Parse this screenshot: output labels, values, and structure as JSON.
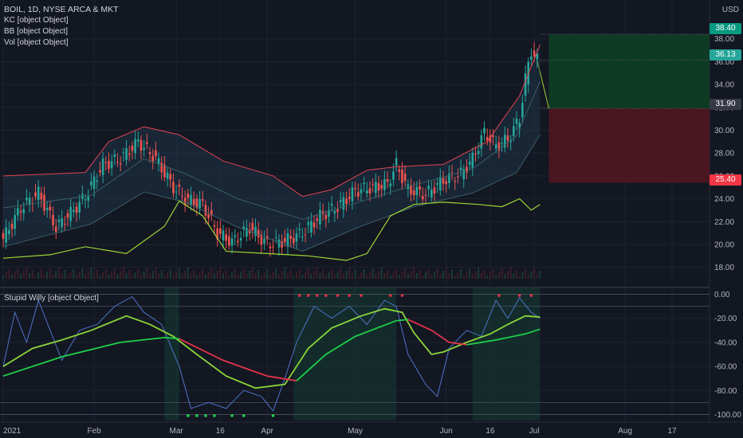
{
  "header": {
    "symbol_line": "BOIL, 1D, NYSE ARCA & MKT",
    "currency": "USD",
    "indicators": [
      "KC [object Object]",
      "BB [object Object]",
      "Vol [object Object]"
    ],
    "oscillator_label": "Stupid Willy [object Object]"
  },
  "price_tags": [
    {
      "value": "38.40",
      "color": "#089981"
    },
    {
      "value": "36.13",
      "color": "#26a69a"
    },
    {
      "value": "31.90",
      "color": "#363a45"
    },
    {
      "value": "25.40",
      "color": "#f23645"
    }
  ],
  "colors": {
    "up": "#26a69a",
    "down": "#ef5350",
    "kc": "#e04452",
    "bb": "#9cd535",
    "osc_blue": "#4f73c9",
    "osc_green": "#8bd53a",
    "osc_red": "#e0334a",
    "signal": "#1fd14a",
    "profit_zone": "#0e3b23",
    "loss_zone": "#4a1620"
  },
  "chart_data": [
    {
      "type": "candlestick",
      "title": "BOIL, 1D, NYSE ARCA & MKT",
      "ylim": [
        17,
        40
      ],
      "y_ticks": [
        "18.00",
        "20.00",
        "22.00",
        "24.00",
        "26.00",
        "28.00",
        "30.00",
        "32.00",
        "34.00",
        "36.00",
        "38.00"
      ],
      "x_ticks": [
        {
          "label": "2021",
          "day": 0
        },
        {
          "label": "Feb",
          "day": 31
        },
        {
          "label": "Mar",
          "day": 59
        },
        {
          "label": "16",
          "day": 74
        },
        {
          "label": "Apr",
          "day": 90
        },
        {
          "label": "May",
          "day": 120
        },
        {
          "label": "Jun",
          "day": 151
        },
        {
          "label": "16",
          "day": 166
        },
        {
          "label": "Jul",
          "day": 181
        },
        {
          "label": "Aug",
          "day": 212
        },
        {
          "label": "17",
          "day": 228
        }
      ],
      "ohlc_keypoints": [
        {
          "day": 0,
          "close": 20.5
        },
        {
          "day": 6,
          "close": 23.2
        },
        {
          "day": 12,
          "close": 24.5
        },
        {
          "day": 18,
          "close": 21.5
        },
        {
          "day": 24,
          "close": 23.0
        },
        {
          "day": 28,
          "close": 24.2
        },
        {
          "day": 34,
          "close": 27.0
        },
        {
          "day": 40,
          "close": 27.5
        },
        {
          "day": 46,
          "close": 29.0
        },
        {
          "day": 52,
          "close": 27.5
        },
        {
          "day": 58,
          "close": 25.0
        },
        {
          "day": 62,
          "close": 24.0
        },
        {
          "day": 68,
          "close": 23.5
        },
        {
          "day": 73,
          "close": 21.0
        },
        {
          "day": 78,
          "close": 20.2
        },
        {
          "day": 84,
          "close": 21.5
        },
        {
          "day": 90,
          "close": 20.0
        },
        {
          "day": 96,
          "close": 20.3
        },
        {
          "day": 102,
          "close": 21.0
        },
        {
          "day": 108,
          "close": 22.5
        },
        {
          "day": 114,
          "close": 23.3
        },
        {
          "day": 120,
          "close": 24.7
        },
        {
          "day": 126,
          "close": 25.0
        },
        {
          "day": 131,
          "close": 25.3
        },
        {
          "day": 134,
          "close": 27.0
        },
        {
          "day": 138,
          "close": 24.8
        },
        {
          "day": 144,
          "close": 24.4
        },
        {
          "day": 150,
          "close": 25.6
        },
        {
          "day": 156,
          "close": 26.2
        },
        {
          "day": 160,
          "close": 27.5
        },
        {
          "day": 164,
          "close": 29.8
        },
        {
          "day": 168,
          "close": 28.6
        },
        {
          "day": 172,
          "close": 29.2
        },
        {
          "day": 176,
          "close": 31.0
        },
        {
          "day": 178,
          "close": 34.5
        },
        {
          "day": 180,
          "close": 37.0
        },
        {
          "day": 182,
          "close": 36.13
        }
      ],
      "keltner_upper": [
        {
          "day": 0,
          "value": 26.0
        },
        {
          "day": 28,
          "value": 26.3
        },
        {
          "day": 36,
          "value": 29.0
        },
        {
          "day": 48,
          "value": 30.3
        },
        {
          "day": 60,
          "value": 29.6
        },
        {
          "day": 75,
          "value": 27.3
        },
        {
          "day": 92,
          "value": 26.0
        },
        {
          "day": 102,
          "value": 24.2
        },
        {
          "day": 112,
          "value": 24.8
        },
        {
          "day": 124,
          "value": 26.5
        },
        {
          "day": 134,
          "value": 26.8
        },
        {
          "day": 150,
          "value": 27.0
        },
        {
          "day": 165,
          "value": 29.0
        },
        {
          "day": 176,
          "value": 33.0
        },
        {
          "day": 183,
          "value": 37.5
        }
      ],
      "keltner_basis": [
        {
          "day": 0,
          "value": 23.2
        },
        {
          "day": 30,
          "value": 24.3
        },
        {
          "day": 48,
          "value": 27.5
        },
        {
          "day": 62,
          "value": 26.2
        },
        {
          "day": 80,
          "value": 24.0
        },
        {
          "day": 102,
          "value": 22.2
        },
        {
          "day": 120,
          "value": 23.6
        },
        {
          "day": 140,
          "value": 25.2
        },
        {
          "day": 160,
          "value": 26.6
        },
        {
          "day": 175,
          "value": 29.5
        },
        {
          "day": 183,
          "value": 34.3
        }
      ],
      "keltner_lower": [
        {
          "day": 0,
          "value": 19.8
        },
        {
          "day": 30,
          "value": 21.8
        },
        {
          "day": 48,
          "value": 24.6
        },
        {
          "day": 62,
          "value": 23.7
        },
        {
          "day": 80,
          "value": 21.5
        },
        {
          "day": 102,
          "value": 19.4
        },
        {
          "day": 120,
          "value": 21.4
        },
        {
          "day": 140,
          "value": 23.3
        },
        {
          "day": 160,
          "value": 24.5
        },
        {
          "day": 175,
          "value": 26.3
        },
        {
          "day": 183,
          "value": 29.6
        }
      ],
      "bollinger_lower": [
        {
          "day": 0,
          "value": 18.8
        },
        {
          "day": 16,
          "value": 19.1
        },
        {
          "day": 28,
          "value": 19.8
        },
        {
          "day": 42,
          "value": 19.2
        },
        {
          "day": 55,
          "value": 21.6
        },
        {
          "day": 60,
          "value": 23.8
        },
        {
          "day": 68,
          "value": 22.5
        },
        {
          "day": 76,
          "value": 19.4
        },
        {
          "day": 90,
          "value": 19.2
        },
        {
          "day": 104,
          "value": 19.0
        },
        {
          "day": 117,
          "value": 18.6
        },
        {
          "day": 124,
          "value": 19.2
        },
        {
          "day": 132,
          "value": 22.5
        },
        {
          "day": 140,
          "value": 23.5
        },
        {
          "day": 150,
          "value": 23.7
        },
        {
          "day": 162,
          "value": 23.5
        },
        {
          "day": 170,
          "value": 23.3
        },
        {
          "day": 176,
          "value": 24.0
        },
        {
          "day": 180,
          "value": 23.0
        },
        {
          "day": 183,
          "value": 23.5
        }
      ],
      "trade_projection": {
        "entry": 31.9,
        "target": 38.4,
        "stop": 25.4,
        "current": 36.13
      }
    },
    {
      "type": "line",
      "title": "Stupid Willy [object Object]",
      "ylim": [
        -105,
        5
      ],
      "y_ticks": [
        "0.00",
        "-20.00",
        "-40.00",
        "-60.00",
        "-80.00",
        "-100.00"
      ],
      "series": [
        {
          "color": "#4f73c9",
          "points": [
            {
              "day": 0,
              "value": -60
            },
            {
              "day": 4,
              "value": -15
            },
            {
              "day": 8,
              "value": -40
            },
            {
              "day": 12,
              "value": -5
            },
            {
              "day": 16,
              "value": -30
            },
            {
              "day": 20,
              "value": -55
            },
            {
              "day": 26,
              "value": -30
            },
            {
              "day": 32,
              "value": -25
            },
            {
              "day": 38,
              "value": -10
            },
            {
              "day": 44,
              "value": -2
            },
            {
              "day": 48,
              "value": -15
            },
            {
              "day": 54,
              "value": -25
            },
            {
              "day": 60,
              "value": -60
            },
            {
              "day": 64,
              "value": -95
            },
            {
              "day": 70,
              "value": -90
            },
            {
              "day": 76,
              "value": -95
            },
            {
              "day": 82,
              "value": -80
            },
            {
              "day": 88,
              "value": -85
            },
            {
              "day": 92,
              "value": -97
            },
            {
              "day": 96,
              "value": -70
            },
            {
              "day": 100,
              "value": -40
            },
            {
              "day": 106,
              "value": -10
            },
            {
              "day": 112,
              "value": -20
            },
            {
              "day": 118,
              "value": -10
            },
            {
              "day": 124,
              "value": -25
            },
            {
              "day": 130,
              "value": -5
            },
            {
              "day": 134,
              "value": -10
            },
            {
              "day": 138,
              "value": -50
            },
            {
              "day": 144,
              "value": -75
            },
            {
              "day": 148,
              "value": -85
            },
            {
              "day": 152,
              "value": -45
            },
            {
              "day": 158,
              "value": -30
            },
            {
              "day": 163,
              "value": -35
            },
            {
              "day": 168,
              "value": -5
            },
            {
              "day": 172,
              "value": -20
            },
            {
              "day": 176,
              "value": -3
            },
            {
              "day": 180,
              "value": -15
            },
            {
              "day": 183,
              "value": -20
            }
          ]
        },
        {
          "color": "#8bd53a",
          "points": [
            {
              "day": 0,
              "value": -60
            },
            {
              "day": 10,
              "value": -45
            },
            {
              "day": 20,
              "value": -38
            },
            {
              "day": 30,
              "value": -30
            },
            {
              "day": 42,
              "value": -18
            },
            {
              "day": 50,
              "value": -25
            },
            {
              "day": 58,
              "value": -35
            },
            {
              "day": 66,
              "value": -50
            },
            {
              "day": 76,
              "value": -68
            },
            {
              "day": 86,
              "value": -78
            },
            {
              "day": 96,
              "value": -75
            },
            {
              "day": 104,
              "value": -45
            },
            {
              "day": 112,
              "value": -28
            },
            {
              "day": 122,
              "value": -18
            },
            {
              "day": 130,
              "value": -12
            },
            {
              "day": 136,
              "value": -15
            },
            {
              "day": 140,
              "value": -32
            },
            {
              "day": 146,
              "value": -50
            },
            {
              "day": 150,
              "value": -48
            },
            {
              "day": 158,
              "value": -40
            },
            {
              "day": 166,
              "value": -33
            },
            {
              "day": 172,
              "value": -25
            },
            {
              "day": 178,
              "value": -18
            },
            {
              "day": 183,
              "value": -19
            }
          ]
        },
        {
          "color": "#1fd14a",
          "points": [
            {
              "day": 0,
              "value": -68
            },
            {
              "day": 20,
              "value": -52
            },
            {
              "day": 40,
              "value": -40
            },
            {
              "day": 55,
              "value": -36
            },
            {
              "day": 60,
              "value": -37
            }
          ]
        },
        {
          "color": "#e0334a",
          "points": [
            {
              "day": 60,
              "value": -37
            },
            {
              "day": 75,
              "value": -55
            },
            {
              "day": 90,
              "value": -68
            },
            {
              "day": 100,
              "value": -72
            }
          ]
        },
        {
          "color": "#1fd14a",
          "points": [
            {
              "day": 100,
              "value": -72
            },
            {
              "day": 110,
              "value": -50
            },
            {
              "day": 120,
              "value": -35
            },
            {
              "day": 134,
              "value": -22
            },
            {
              "day": 138,
              "value": -21
            }
          ]
        },
        {
          "color": "#e0334a",
          "points": [
            {
              "day": 138,
              "value": -21
            },
            {
              "day": 146,
              "value": -30
            },
            {
              "day": 152,
              "value": -40
            },
            {
              "day": 158,
              "value": -42
            }
          ]
        },
        {
          "color": "#1fd14a",
          "points": [
            {
              "day": 158,
              "value": -42
            },
            {
              "day": 168,
              "value": -38
            },
            {
              "day": 178,
              "value": -33
            },
            {
              "day": 183,
              "value": -29
            }
          ]
        }
      ]
    }
  ]
}
